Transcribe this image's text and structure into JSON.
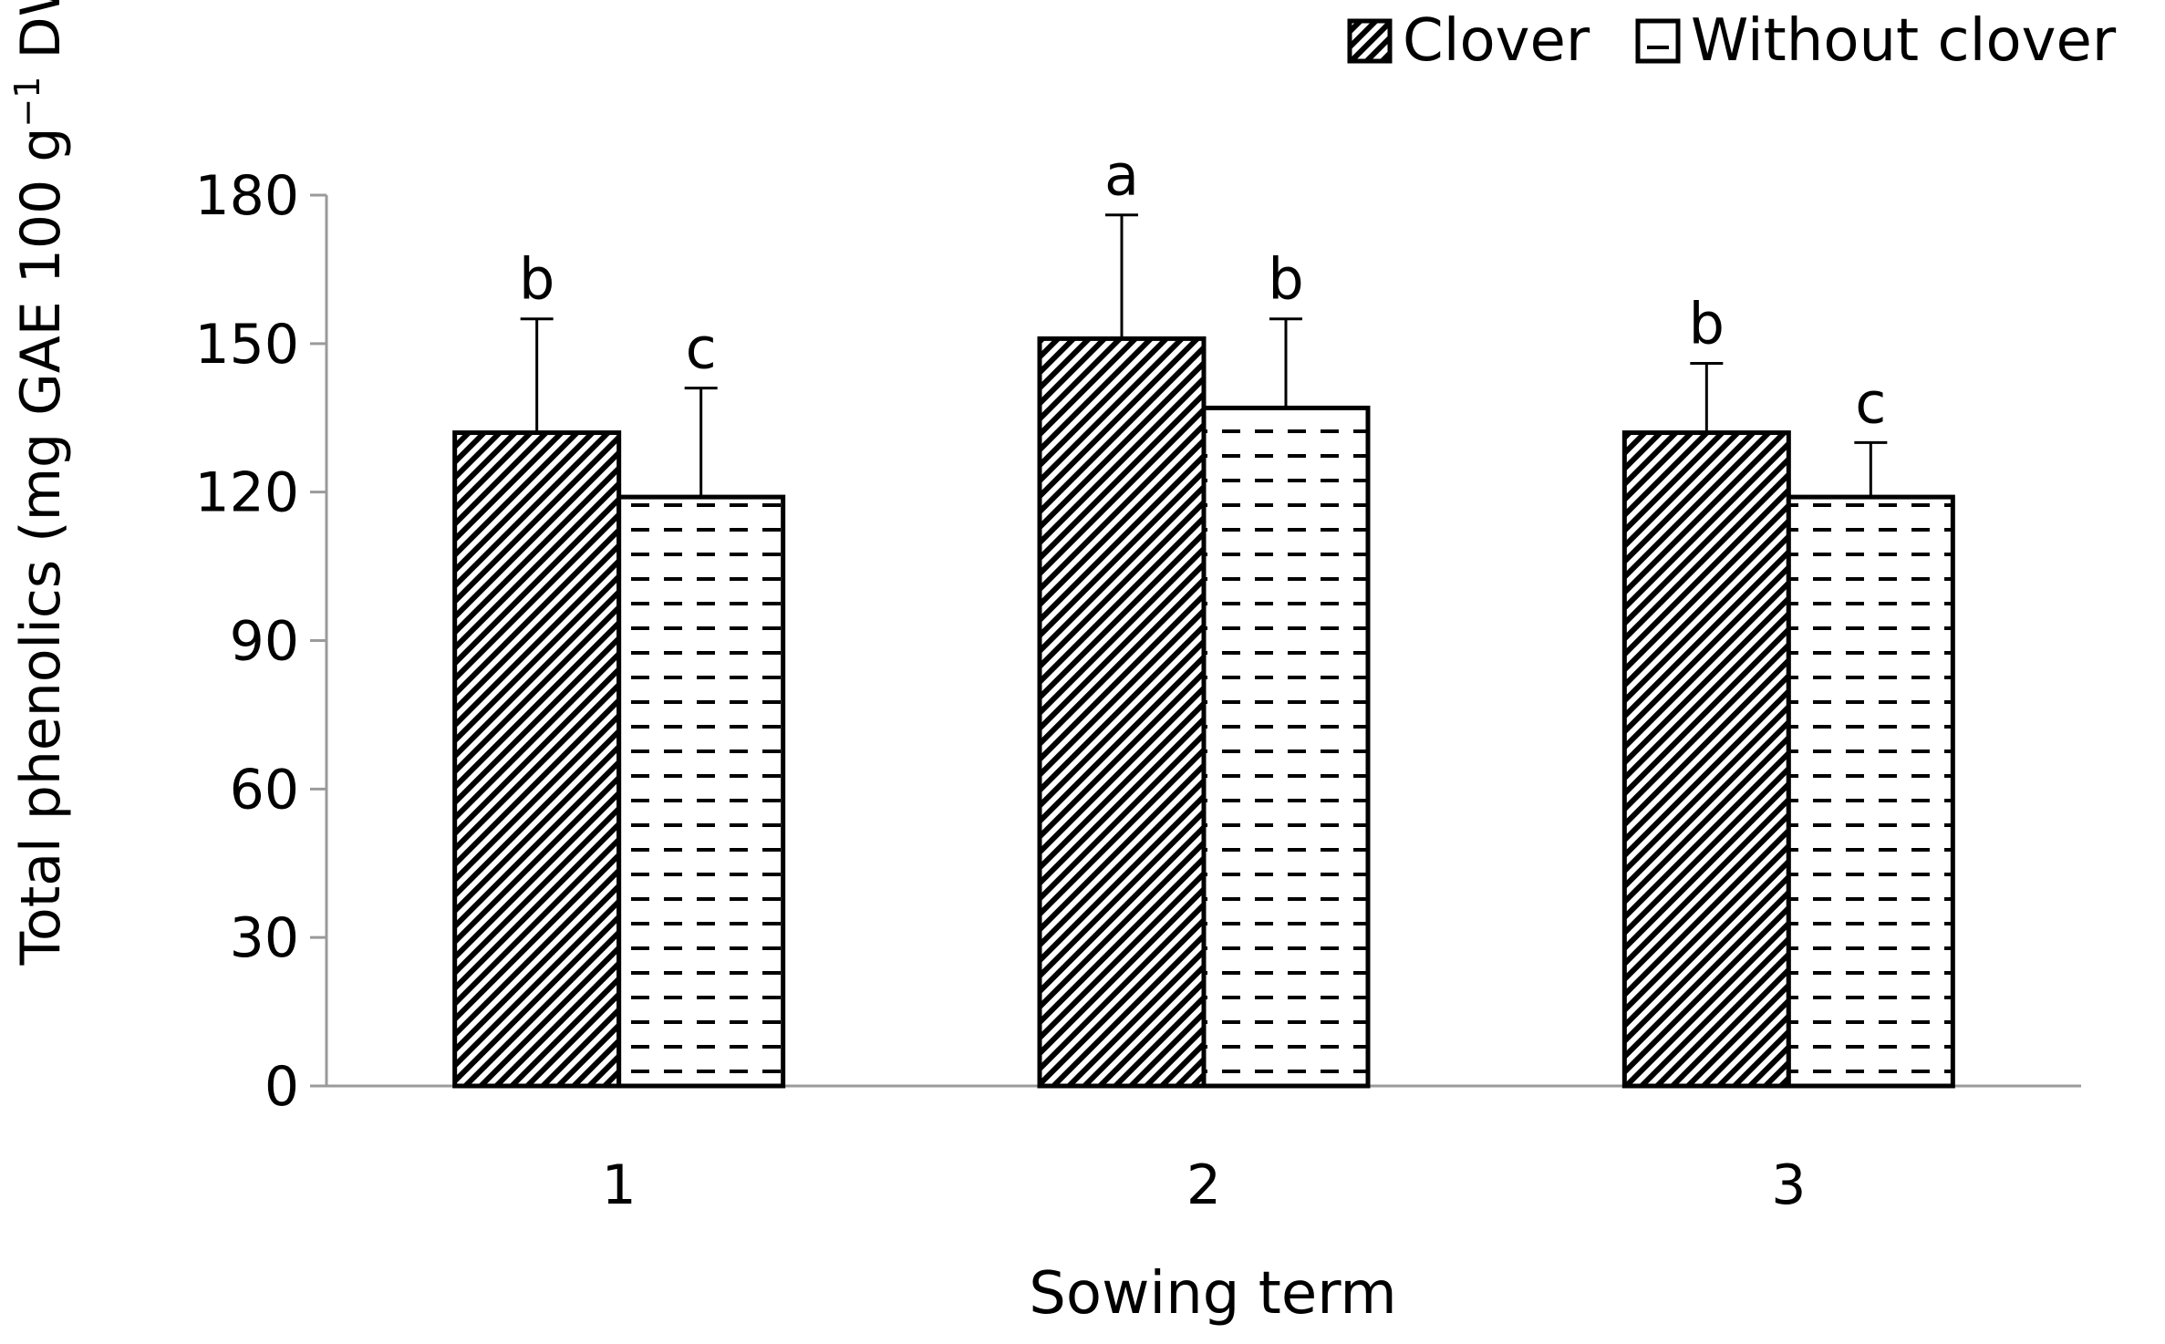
{
  "chart_data": {
    "type": "bar",
    "title": "",
    "xlabel": "Sowing term",
    "ylabel": {
      "main": "Total phenolics (mg GAE 100 g",
      "sup": "−1",
      "tail": " DW)"
    },
    "categories": [
      "1",
      "2",
      "3"
    ],
    "ylim": [
      0,
      180
    ],
    "yticks": [
      "0",
      "30",
      "60",
      "90",
      "120",
      "150",
      "180"
    ],
    "grid": false,
    "legend_position": "top-right",
    "series": [
      {
        "name": "Clover",
        "pattern": "diagonal-stripes",
        "values": [
          132,
          151,
          132
        ],
        "error": [
          23,
          25,
          14
        ],
        "significance": [
          "b",
          "a",
          "b"
        ]
      },
      {
        "name": "Without clover",
        "pattern": "horizontal-dashes",
        "values": [
          119,
          137,
          119
        ],
        "error": [
          22,
          18,
          11
        ],
        "significance": [
          "c",
          "b",
          "c"
        ]
      }
    ],
    "colors": {
      "bar_stroke": "#000000",
      "axis": "#9a9a9a",
      "fill": "#ffffff"
    }
  }
}
